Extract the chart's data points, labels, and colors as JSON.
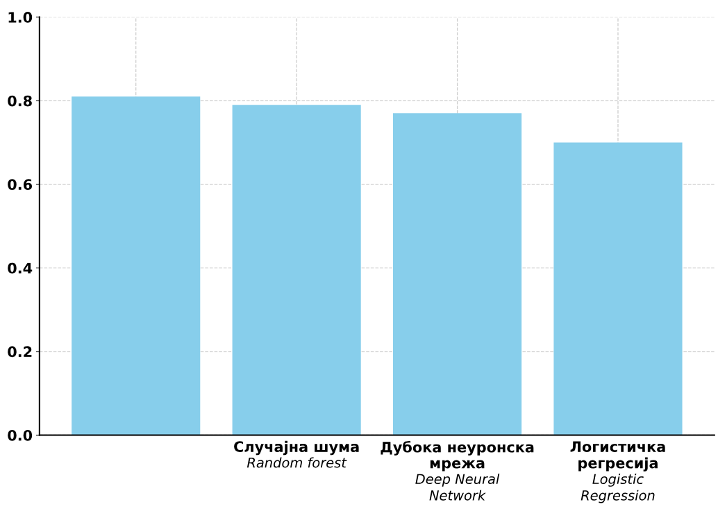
{
  "chart_data": {
    "type": "bar",
    "categories": [
      null,
      "Случајна шума\nRandom forest",
      "Дубока неуронска\nмрежа\nDeep Neural\nNetwork",
      "Логистичка\nрегресија\nLogistic\nRegression"
    ],
    "values": [
      0.81,
      0.79,
      0.77,
      0.7
    ],
    "color": "#87ceeb",
    "ylim": [
      0,
      1
    ],
    "yticks": [
      {
        "value": 0,
        "label": "0.0"
      },
      {
        "value": 0.2,
        "label": "0.2"
      },
      {
        "value": 0.4,
        "label": "0.4"
      },
      {
        "value": 0.6,
        "label": "0.6"
      },
      {
        "value": 0.8,
        "label": "0.8"
      },
      {
        "value": 1,
        "label": "1.0"
      }
    ],
    "grid": true
  }
}
